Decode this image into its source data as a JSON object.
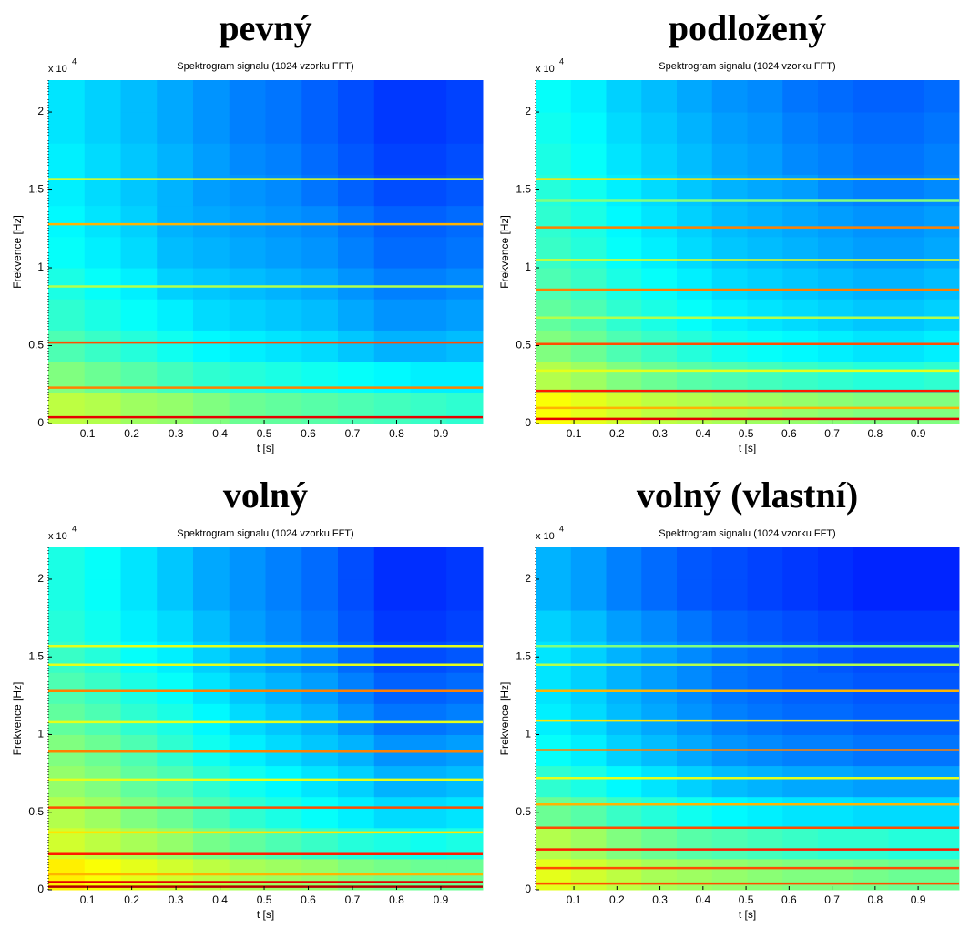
{
  "chart_data": [
    {
      "type": "heatmap",
      "title": "pevný",
      "subtitle": "Spektrogram signalu (1024 vzorku FFT)",
      "xlabel": "t [s]",
      "ylabel": "Frekvence [Hz]",
      "y_multiplier": "x 10",
      "y_multiplier_exponent": "4",
      "colormap": "jet",
      "xlim": [
        0.011,
        0.995
      ],
      "ylim": [
        0,
        2.205
      ],
      "xticks": [
        0.1,
        0.2,
        0.3,
        0.4,
        0.5,
        0.6,
        0.7,
        0.8,
        0.9
      ],
      "yticks": [
        0,
        0.5,
        1,
        1.5,
        2
      ],
      "x_edges": [
        0.011,
        0.093,
        0.175,
        0.257,
        0.339,
        0.421,
        0.503,
        0.585,
        0.667,
        0.749,
        0.831,
        0.913,
        0.995
      ],
      "y_edges": [
        0,
        0.2,
        0.4,
        0.6,
        0.8,
        1.0,
        1.2,
        1.4,
        1.6,
        1.8,
        2.0,
        2.205
      ],
      "z": [
        [
          0.56,
          0.55,
          0.53,
          0.52,
          0.5,
          0.48,
          0.47,
          0.46,
          0.45,
          0.44,
          0.43,
          0.42
        ],
        [
          0.5,
          0.48,
          0.46,
          0.44,
          0.42,
          0.41,
          0.4,
          0.39,
          0.38,
          0.37,
          0.36,
          0.36
        ],
        [
          0.45,
          0.43,
          0.41,
          0.39,
          0.37,
          0.36,
          0.35,
          0.34,
          0.32,
          0.3,
          0.3,
          0.31
        ],
        [
          0.42,
          0.4,
          0.38,
          0.36,
          0.34,
          0.33,
          0.32,
          0.31,
          0.29,
          0.27,
          0.27,
          0.28
        ],
        [
          0.4,
          0.38,
          0.36,
          0.33,
          0.32,
          0.31,
          0.3,
          0.29,
          0.27,
          0.25,
          0.25,
          0.26
        ],
        [
          0.38,
          0.36,
          0.34,
          0.31,
          0.3,
          0.29,
          0.28,
          0.27,
          0.25,
          0.23,
          0.23,
          0.24
        ],
        [
          0.37,
          0.35,
          0.33,
          0.3,
          0.29,
          0.28,
          0.27,
          0.26,
          0.24,
          0.22,
          0.22,
          0.23
        ],
        [
          0.36,
          0.34,
          0.32,
          0.3,
          0.28,
          0.27,
          0.26,
          0.24,
          0.22,
          0.2,
          0.2,
          0.21
        ],
        [
          0.36,
          0.34,
          0.32,
          0.3,
          0.28,
          0.26,
          0.25,
          0.23,
          0.21,
          0.19,
          0.19,
          0.2
        ],
        [
          0.35,
          0.33,
          0.31,
          0.29,
          0.27,
          0.25,
          0.24,
          0.22,
          0.2,
          0.18,
          0.18,
          0.19
        ],
        [
          0.35,
          0.33,
          0.31,
          0.29,
          0.27,
          0.25,
          0.24,
          0.22,
          0.2,
          0.18,
          0.18,
          0.19
        ]
      ],
      "harmonics": {
        "freq": [
          0.04,
          0.23,
          0.52,
          0.88,
          1.28,
          1.57
        ],
        "level": [
          0.9,
          0.75,
          0.8,
          0.55,
          0.7,
          0.6
        ]
      }
    },
    {
      "type": "heatmap",
      "title": "podložený",
      "subtitle": "Spektrogram signalu (1024 vzorku FFT)",
      "xlabel": "t [s]",
      "ylabel": "Frekvence [Hz]",
      "y_multiplier": "x 10",
      "y_multiplier_exponent": "4",
      "colormap": "jet",
      "xlim": [
        0.011,
        0.995
      ],
      "ylim": [
        0,
        2.205
      ],
      "xticks": [
        0.1,
        0.2,
        0.3,
        0.4,
        0.5,
        0.6,
        0.7,
        0.8,
        0.9
      ],
      "yticks": [
        0,
        0.5,
        1,
        1.5,
        2
      ],
      "x_edges": [
        0.011,
        0.093,
        0.175,
        0.257,
        0.339,
        0.421,
        0.503,
        0.585,
        0.667,
        0.749,
        0.831,
        0.913,
        0.995
      ],
      "y_edges": [
        0,
        0.2,
        0.4,
        0.6,
        0.8,
        1.0,
        1.2,
        1.4,
        1.6,
        1.8,
        2.0,
        2.205
      ],
      "z": [
        [
          0.62,
          0.6,
          0.58,
          0.56,
          0.55,
          0.54,
          0.53,
          0.52,
          0.51,
          0.5,
          0.5,
          0.5
        ],
        [
          0.55,
          0.53,
          0.5,
          0.48,
          0.46,
          0.45,
          0.44,
          0.43,
          0.42,
          0.41,
          0.41,
          0.42
        ],
        [
          0.5,
          0.48,
          0.45,
          0.43,
          0.41,
          0.39,
          0.38,
          0.37,
          0.36,
          0.35,
          0.35,
          0.36
        ],
        [
          0.47,
          0.45,
          0.42,
          0.4,
          0.38,
          0.36,
          0.35,
          0.34,
          0.33,
          0.32,
          0.32,
          0.33
        ],
        [
          0.45,
          0.43,
          0.4,
          0.38,
          0.36,
          0.34,
          0.33,
          0.32,
          0.31,
          0.3,
          0.3,
          0.31
        ],
        [
          0.43,
          0.41,
          0.38,
          0.36,
          0.34,
          0.32,
          0.31,
          0.3,
          0.29,
          0.28,
          0.28,
          0.29
        ],
        [
          0.42,
          0.4,
          0.37,
          0.35,
          0.33,
          0.31,
          0.3,
          0.29,
          0.28,
          0.27,
          0.27,
          0.28
        ],
        [
          0.41,
          0.39,
          0.36,
          0.34,
          0.32,
          0.3,
          0.29,
          0.28,
          0.26,
          0.25,
          0.25,
          0.26
        ],
        [
          0.4,
          0.38,
          0.35,
          0.33,
          0.31,
          0.29,
          0.28,
          0.26,
          0.25,
          0.24,
          0.24,
          0.25
        ],
        [
          0.39,
          0.37,
          0.34,
          0.32,
          0.3,
          0.28,
          0.27,
          0.25,
          0.24,
          0.23,
          0.23,
          0.24
        ],
        [
          0.38,
          0.36,
          0.33,
          0.31,
          0.29,
          0.27,
          0.26,
          0.24,
          0.23,
          0.22,
          0.22,
          0.23
        ]
      ],
      "harmonics": {
        "freq": [
          0.03,
          0.1,
          0.21,
          0.34,
          0.51,
          0.68,
          0.86,
          1.05,
          1.26,
          1.43,
          1.57
        ],
        "level": [
          0.9,
          0.7,
          0.85,
          0.6,
          0.8,
          0.55,
          0.75,
          0.6,
          0.75,
          0.5,
          0.65
        ]
      }
    },
    {
      "type": "heatmap",
      "title": "volný",
      "subtitle": "Spektrogram signalu (1024 vzorku FFT)",
      "xlabel": "t [s]",
      "ylabel": "Frekvence [Hz]",
      "y_multiplier": "x 10",
      "y_multiplier_exponent": "4",
      "colormap": "jet",
      "xlim": [
        0.011,
        0.995
      ],
      "ylim": [
        0,
        2.205
      ],
      "xticks": [
        0.1,
        0.2,
        0.3,
        0.4,
        0.5,
        0.6,
        0.7,
        0.8,
        0.9
      ],
      "yticks": [
        0,
        0.5,
        1,
        1.5,
        2
      ],
      "x_edges": [
        0.011,
        0.093,
        0.175,
        0.257,
        0.339,
        0.421,
        0.503,
        0.585,
        0.667,
        0.749,
        0.831,
        0.913,
        0.995
      ],
      "y_edges": [
        0,
        0.2,
        0.4,
        0.6,
        0.8,
        1.0,
        1.2,
        1.4,
        1.6,
        1.8,
        2.0,
        2.205
      ],
      "z": [
        [
          0.64,
          0.62,
          0.6,
          0.58,
          0.56,
          0.54,
          0.53,
          0.52,
          0.5,
          0.49,
          0.48,
          0.48
        ],
        [
          0.58,
          0.56,
          0.54,
          0.52,
          0.49,
          0.47,
          0.45,
          0.43,
          0.41,
          0.4,
          0.39,
          0.4
        ],
        [
          0.55,
          0.53,
          0.5,
          0.48,
          0.45,
          0.42,
          0.4,
          0.38,
          0.36,
          0.34,
          0.34,
          0.35
        ],
        [
          0.52,
          0.5,
          0.47,
          0.45,
          0.42,
          0.39,
          0.37,
          0.35,
          0.33,
          0.3,
          0.3,
          0.31
        ],
        [
          0.5,
          0.48,
          0.45,
          0.42,
          0.39,
          0.36,
          0.34,
          0.32,
          0.3,
          0.27,
          0.27,
          0.28
        ],
        [
          0.47,
          0.45,
          0.42,
          0.4,
          0.37,
          0.34,
          0.32,
          0.3,
          0.27,
          0.24,
          0.24,
          0.25
        ],
        [
          0.45,
          0.43,
          0.4,
          0.38,
          0.35,
          0.32,
          0.3,
          0.28,
          0.25,
          0.22,
          0.22,
          0.23
        ],
        [
          0.43,
          0.41,
          0.38,
          0.36,
          0.33,
          0.3,
          0.28,
          0.26,
          0.23,
          0.2,
          0.2,
          0.21
        ],
        [
          0.41,
          0.39,
          0.36,
          0.34,
          0.31,
          0.28,
          0.26,
          0.24,
          0.21,
          0.18,
          0.18,
          0.19
        ],
        [
          0.4,
          0.38,
          0.35,
          0.32,
          0.29,
          0.27,
          0.25,
          0.23,
          0.2,
          0.17,
          0.17,
          0.18
        ],
        [
          0.4,
          0.38,
          0.35,
          0.32,
          0.29,
          0.27,
          0.25,
          0.23,
          0.2,
          0.17,
          0.17,
          0.18
        ]
      ],
      "harmonics": {
        "freq": [
          0.02,
          0.05,
          0.1,
          0.23,
          0.37,
          0.53,
          0.71,
          0.89,
          1.08,
          1.28,
          1.45,
          1.57
        ],
        "level": [
          0.95,
          0.9,
          0.7,
          0.85,
          0.65,
          0.8,
          0.6,
          0.75,
          0.6,
          0.75,
          0.6,
          0.6
        ]
      }
    },
    {
      "type": "heatmap",
      "title": "volný (vlastní)",
      "subtitle": "Spektrogram signalu (1024 vzorku FFT)",
      "xlabel": "t [s]",
      "ylabel": "Frekvence [Hz]",
      "y_multiplier": "x 10",
      "y_multiplier_exponent": "4",
      "colormap": "jet",
      "xlim": [
        0.011,
        0.995
      ],
      "ylim": [
        0,
        2.205
      ],
      "xticks": [
        0.1,
        0.2,
        0.3,
        0.4,
        0.5,
        0.6,
        0.7,
        0.8,
        0.9
      ],
      "yticks": [
        0,
        0.5,
        1,
        1.5,
        2
      ],
      "x_edges": [
        0.011,
        0.093,
        0.175,
        0.257,
        0.339,
        0.421,
        0.503,
        0.585,
        0.667,
        0.749,
        0.831,
        0.913,
        0.995
      ],
      "y_edges": [
        0,
        0.2,
        0.4,
        0.6,
        0.8,
        1.0,
        1.2,
        1.4,
        1.6,
        1.8,
        2.0,
        2.205
      ],
      "z": [
        [
          0.6,
          0.58,
          0.56,
          0.54,
          0.53,
          0.52,
          0.51,
          0.5,
          0.5,
          0.49,
          0.48,
          0.48
        ],
        [
          0.55,
          0.53,
          0.5,
          0.48,
          0.46,
          0.45,
          0.44,
          0.43,
          0.42,
          0.42,
          0.41,
          0.41
        ],
        [
          0.48,
          0.46,
          0.43,
          0.41,
          0.39,
          0.37,
          0.36,
          0.35,
          0.35,
          0.34,
          0.34,
          0.34
        ],
        [
          0.42,
          0.4,
          0.37,
          0.35,
          0.33,
          0.31,
          0.3,
          0.29,
          0.29,
          0.28,
          0.28,
          0.28
        ],
        [
          0.38,
          0.36,
          0.33,
          0.31,
          0.29,
          0.27,
          0.26,
          0.25,
          0.25,
          0.24,
          0.24,
          0.24
        ],
        [
          0.36,
          0.34,
          0.31,
          0.29,
          0.27,
          0.25,
          0.24,
          0.23,
          0.23,
          0.22,
          0.22,
          0.22
        ],
        [
          0.35,
          0.33,
          0.3,
          0.28,
          0.26,
          0.24,
          0.23,
          0.22,
          0.22,
          0.21,
          0.21,
          0.21
        ],
        [
          0.35,
          0.33,
          0.3,
          0.28,
          0.26,
          0.24,
          0.23,
          0.22,
          0.21,
          0.2,
          0.2,
          0.2
        ],
        [
          0.33,
          0.31,
          0.28,
          0.26,
          0.24,
          0.22,
          0.21,
          0.2,
          0.19,
          0.18,
          0.18,
          0.18
        ],
        [
          0.3,
          0.28,
          0.25,
          0.23,
          0.21,
          0.2,
          0.19,
          0.18,
          0.17,
          0.16,
          0.16,
          0.16
        ],
        [
          0.3,
          0.28,
          0.25,
          0.23,
          0.21,
          0.2,
          0.19,
          0.18,
          0.17,
          0.16,
          0.16,
          0.16
        ]
      ],
      "harmonics": {
        "freq": [
          0.04,
          0.14,
          0.26,
          0.4,
          0.55,
          0.72,
          0.9,
          1.09,
          1.28,
          1.45,
          1.57
        ],
        "level": [
          0.8,
          0.8,
          0.85,
          0.8,
          0.7,
          0.6,
          0.75,
          0.65,
          0.7,
          0.55,
          0.5
        ]
      }
    }
  ]
}
